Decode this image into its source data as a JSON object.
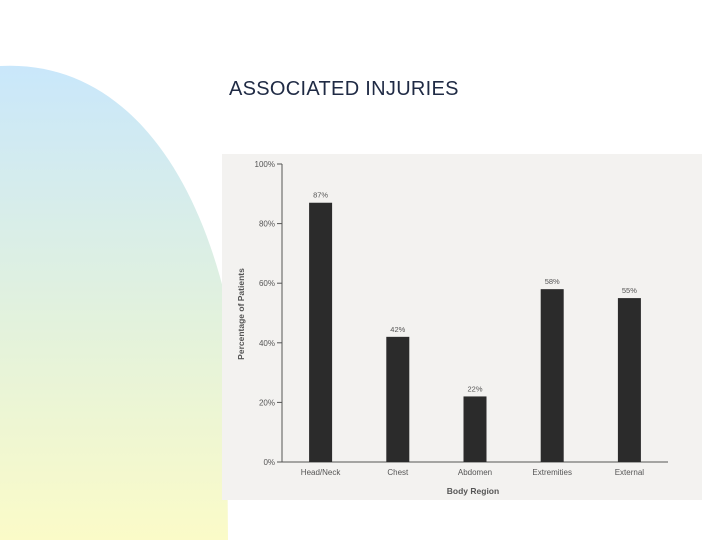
{
  "slide": {
    "title": "ASSOCIATED INJURIES"
  },
  "chart_data": {
    "type": "bar",
    "title": "",
    "xlabel": "Body Region",
    "ylabel": "Percentage of Patients",
    "categories": [
      "Head/Neck",
      "Chest",
      "Abdomen",
      "Extremities",
      "External"
    ],
    "values": [
      87,
      42,
      22,
      58,
      55
    ],
    "data_labels": [
      "87%",
      "42%",
      "22%",
      "58%",
      "55%"
    ],
    "ylim": [
      0,
      100
    ],
    "yticks": [
      0,
      20,
      40,
      60,
      80,
      100
    ],
    "ytick_labels": [
      "0%",
      "20%",
      "40%",
      "60%",
      "80%",
      "100%"
    ],
    "grid": false,
    "legend": "none",
    "bar_color": "#2b2b2b"
  }
}
